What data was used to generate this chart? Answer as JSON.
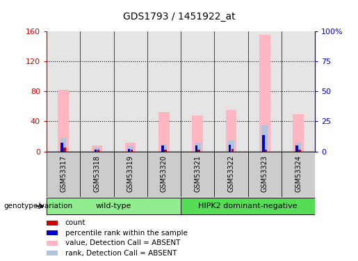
{
  "title": "GDS1793 / 1451922_at",
  "samples": [
    "GSM53317",
    "GSM53318",
    "GSM53319",
    "GSM53320",
    "GSM53321",
    "GSM53322",
    "GSM53323",
    "GSM53324"
  ],
  "value_absent": [
    82,
    8,
    12,
    52,
    48,
    55,
    155,
    50
  ],
  "rank_absent": [
    18,
    5,
    8,
    10,
    12,
    14,
    35,
    12
  ],
  "count_val": [
    5,
    2,
    2,
    2,
    2,
    3,
    2,
    2
  ],
  "percentile_val": [
    12,
    2,
    3,
    8,
    8,
    9,
    22,
    8
  ],
  "groups": [
    {
      "label": "wild-type",
      "start": 0,
      "end": 4,
      "color": "#90EE90"
    },
    {
      "label": "HIPK2 dominant-negative",
      "start": 4,
      "end": 8,
      "color": "#55DD55"
    }
  ],
  "ylim_left": [
    0,
    160
  ],
  "ylim_right": [
    0,
    100
  ],
  "yticks_left": [
    0,
    40,
    80,
    120,
    160
  ],
  "yticks_right": [
    0,
    25,
    50,
    75,
    100
  ],
  "yticklabels_right": [
    "0",
    "25",
    "50",
    "75",
    "100%"
  ],
  "left_axis_color": "#CC0000",
  "right_axis_color": "#0000CC",
  "value_absent_color": "#FFB6C1",
  "rank_absent_color": "#B0C4DE",
  "count_color": "#CC0000",
  "percentile_color": "#0000CC",
  "bg_color": "#FFFFFF",
  "col_bg_color": "#CCCCCC",
  "grid_color": "black",
  "legend_items": [
    {
      "color": "#CC0000",
      "label": "count"
    },
    {
      "color": "#0000CC",
      "label": "percentile rank within the sample"
    },
    {
      "color": "#FFB6C1",
      "label": "value, Detection Call = ABSENT"
    },
    {
      "color": "#B0C4DE",
      "label": "rank, Detection Call = ABSENT"
    }
  ]
}
